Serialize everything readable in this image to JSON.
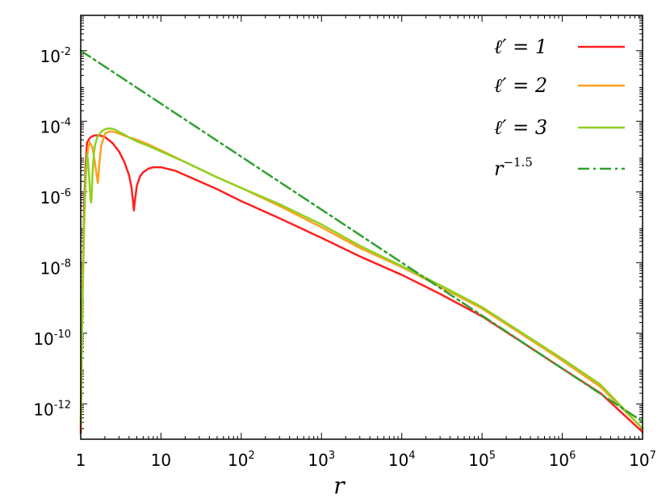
{
  "chart_data": {
    "type": "line",
    "xlabel": "r",
    "ylabel": "",
    "xscale": "log",
    "yscale": "log",
    "xlim": [
      1,
      10000000
    ],
    "ylim": [
      1e-13,
      0.1
    ],
    "grid": false,
    "legend_position": "top-right",
    "x_ticks": [
      {
        "value": 1,
        "base": "1",
        "exp": ""
      },
      {
        "value": 10,
        "base": "10",
        "exp": ""
      },
      {
        "value": 100,
        "base": "10",
        "exp": "2"
      },
      {
        "value": 1000,
        "base": "10",
        "exp": "3"
      },
      {
        "value": 10000,
        "base": "10",
        "exp": "4"
      },
      {
        "value": 100000,
        "base": "10",
        "exp": "5"
      },
      {
        "value": 1000000,
        "base": "10",
        "exp": "6"
      },
      {
        "value": 10000000,
        "base": "10",
        "exp": "7"
      }
    ],
    "y_ticks": [
      {
        "value": 1e-12,
        "base": "10",
        "exp": "-12"
      },
      {
        "value": 1e-10,
        "base": "10",
        "exp": "-10"
      },
      {
        "value": 1e-08,
        "base": "10",
        "exp": "-8"
      },
      {
        "value": 1e-06,
        "base": "10",
        "exp": "-6"
      },
      {
        "value": 0.0001,
        "base": "10",
        "exp": "-4"
      },
      {
        "value": 0.01,
        "base": "10",
        "exp": "-2"
      }
    ],
    "series": [
      {
        "name": "ℓ′ = 1",
        "legend_main": "ℓ′ = 1",
        "legend_exp": "",
        "color": "#ff2020",
        "dash": "",
        "x": [
          1.0,
          1.05,
          1.1,
          1.15,
          1.2,
          1.3,
          1.4,
          1.5,
          1.7,
          2.0,
          2.5,
          3.0,
          3.5,
          4.0,
          4.3,
          4.5,
          4.6,
          4.7,
          5.0,
          5.5,
          6.0,
          7.0,
          8.0,
          10,
          15,
          20,
          30,
          50,
          100,
          300,
          1000,
          3000,
          10000,
          30000,
          100000,
          300000,
          1000000,
          3000000,
          10000000
        ],
        "y": [
          1.5e-13,
          1e-09,
          3e-07,
          6e-06,
          2.5e-05,
          3.4e-05,
          3.8e-05,
          4e-05,
          4e-05,
          3.6e-05,
          2.4e-05,
          1.4e-05,
          7e-06,
          3e-06,
          1.3e-06,
          5e-07,
          3e-07,
          5e-07,
          1.5e-06,
          2.8e-06,
          3.6e-06,
          4.6e-06,
          5e-06,
          5e-06,
          4e-06,
          3e-06,
          2e-06,
          1.2e-06,
          5.5e-07,
          1.8e-07,
          5e-08,
          1.5e-08,
          4.5e-09,
          1.3e-09,
          3e-10,
          6e-11,
          1e-11,
          2e-12,
          1.6e-13
        ]
      },
      {
        "name": "ℓ′ = 2",
        "legend_main": "ℓ′ = 2",
        "legend_exp": "",
        "color": "#ffa020",
        "dash": "",
        "x": [
          1.0,
          1.05,
          1.1,
          1.15,
          1.2,
          1.25,
          1.3,
          1.4,
          1.5,
          1.55,
          1.6,
          1.63,
          1.66,
          1.7,
          1.8,
          2.0,
          2.3,
          2.6,
          3.0,
          4.0,
          5.0,
          7.0,
          10,
          20,
          50,
          100,
          300,
          1000,
          3000,
          10000,
          30000,
          100000,
          300000,
          1000000,
          3000000,
          10000000
        ],
        "y": [
          2e-13,
          5e-10,
          1e-07,
          2e-06,
          1e-05,
          2e-05,
          2.5e-05,
          1.8e-05,
          7e-06,
          4e-06,
          2.5e-06,
          1.8e-06,
          2.5e-06,
          6e-06,
          2e-05,
          4.5e-05,
          5.2e-05,
          5e-05,
          4.5e-05,
          3.5e-05,
          3e-05,
          2.2e-05,
          1.5e-05,
          7e-06,
          2.6e-06,
          1.3e-06,
          4e-07,
          1e-07,
          2.6e-08,
          7.5e-09,
          2.1e-09,
          5e-10,
          1e-10,
          1.7e-11,
          3e-12,
          2e-13
        ]
      },
      {
        "name": "ℓ′ = 3",
        "legend_main": "ℓ′ = 3",
        "legend_exp": "",
        "color": "#90d020",
        "dash": "",
        "x": [
          1.0,
          1.05,
          1.1,
          1.15,
          1.2,
          1.23,
          1.27,
          1.3,
          1.33,
          1.35,
          1.37,
          1.4,
          1.45,
          1.5,
          1.6,
          1.8,
          2.0,
          2.3,
          2.6,
          3.0,
          3.5,
          4.0,
          5.0,
          7.0,
          10,
          20,
          50,
          100,
          300,
          1000,
          3000,
          10000,
          30000,
          100000,
          300000,
          1000000,
          3000000,
          10000000
        ],
        "y": [
          3e-13,
          1e-09,
          1e-07,
          3e-06,
          1.2e-05,
          8e-06,
          3e-06,
          1.2e-06,
          6e-07,
          5e-07,
          8e-07,
          3e-06,
          1e-05,
          2e-05,
          3.5e-05,
          5e-05,
          6e-05,
          6.3e-05,
          6e-05,
          5e-05,
          4.2e-05,
          3.5e-05,
          2.7e-05,
          2e-05,
          1.4e-05,
          7e-06,
          2.6e-06,
          1.3e-06,
          4.5e-07,
          1.2e-07,
          3e-08,
          8e-09,
          2.3e-09,
          5.5e-10,
          1.1e-10,
          1.9e-11,
          3.5e-12,
          2e-13
        ]
      },
      {
        "name": "r^{-1.5}",
        "legend_main": "r",
        "legend_exp": "−1.5",
        "color": "#30a030",
        "dash": "14,5,3,5",
        "x": [
          1,
          10000000
        ],
        "y": [
          0.01,
          3.16e-13
        ]
      }
    ]
  }
}
